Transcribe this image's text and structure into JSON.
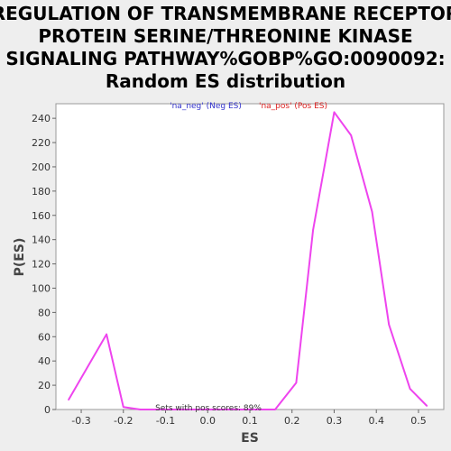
{
  "chart_data": {
    "type": "line",
    "title_lines": [
      "REGULATION OF TRANSMEMBRANE RECEPTOR",
      "PROTEIN SERINE/THREONINE KINASE",
      "SIGNALING PATHWAY%GOBP%GO:0090092:",
      "Random ES distribution"
    ],
    "xlabel": "ES",
    "ylabel": "P(ES)",
    "xlim": [
      -0.36,
      0.56
    ],
    "ylim": [
      0,
      252
    ],
    "xticks": [
      -0.3,
      -0.2,
      -0.1,
      0.0,
      0.1,
      0.2,
      0.3,
      0.4,
      0.5
    ],
    "xtick_labels": [
      "-0.3",
      "-0.2",
      "-0.1",
      "0.0",
      "0.1",
      "0.2",
      "0.3",
      "0.4",
      "0.5"
    ],
    "yticks": [
      0,
      20,
      40,
      60,
      80,
      100,
      120,
      140,
      160,
      180,
      200,
      220,
      240
    ],
    "ytick_labels": [
      "0",
      "20",
      "40",
      "60",
      "80",
      "100",
      "120",
      "140",
      "160",
      "180",
      "200",
      "220",
      "240"
    ],
    "grid": false,
    "legend": [
      {
        "label": "'na_neg' (Neg ES)",
        "color": "#3333cc"
      },
      {
        "label": "'na_pos' (Pos ES)",
        "color": "#dd2222"
      }
    ],
    "annotation": "Sets with pos scores: 89%",
    "series": [
      {
        "color": "#ee44ee",
        "x": [
          -0.33,
          -0.24,
          -0.2,
          -0.16,
          -0.11,
          -0.07,
          -0.03,
          0.02,
          0.06,
          0.11,
          0.16,
          0.21,
          0.25,
          0.3,
          0.34,
          0.39,
          0.43,
          0.48,
          0.52
        ],
        "y": [
          8,
          62,
          2,
          0,
          0,
          0,
          0,
          0,
          0,
          0,
          0,
          22,
          148,
          245,
          226,
          163,
          70,
          17,
          3
        ]
      }
    ]
  }
}
